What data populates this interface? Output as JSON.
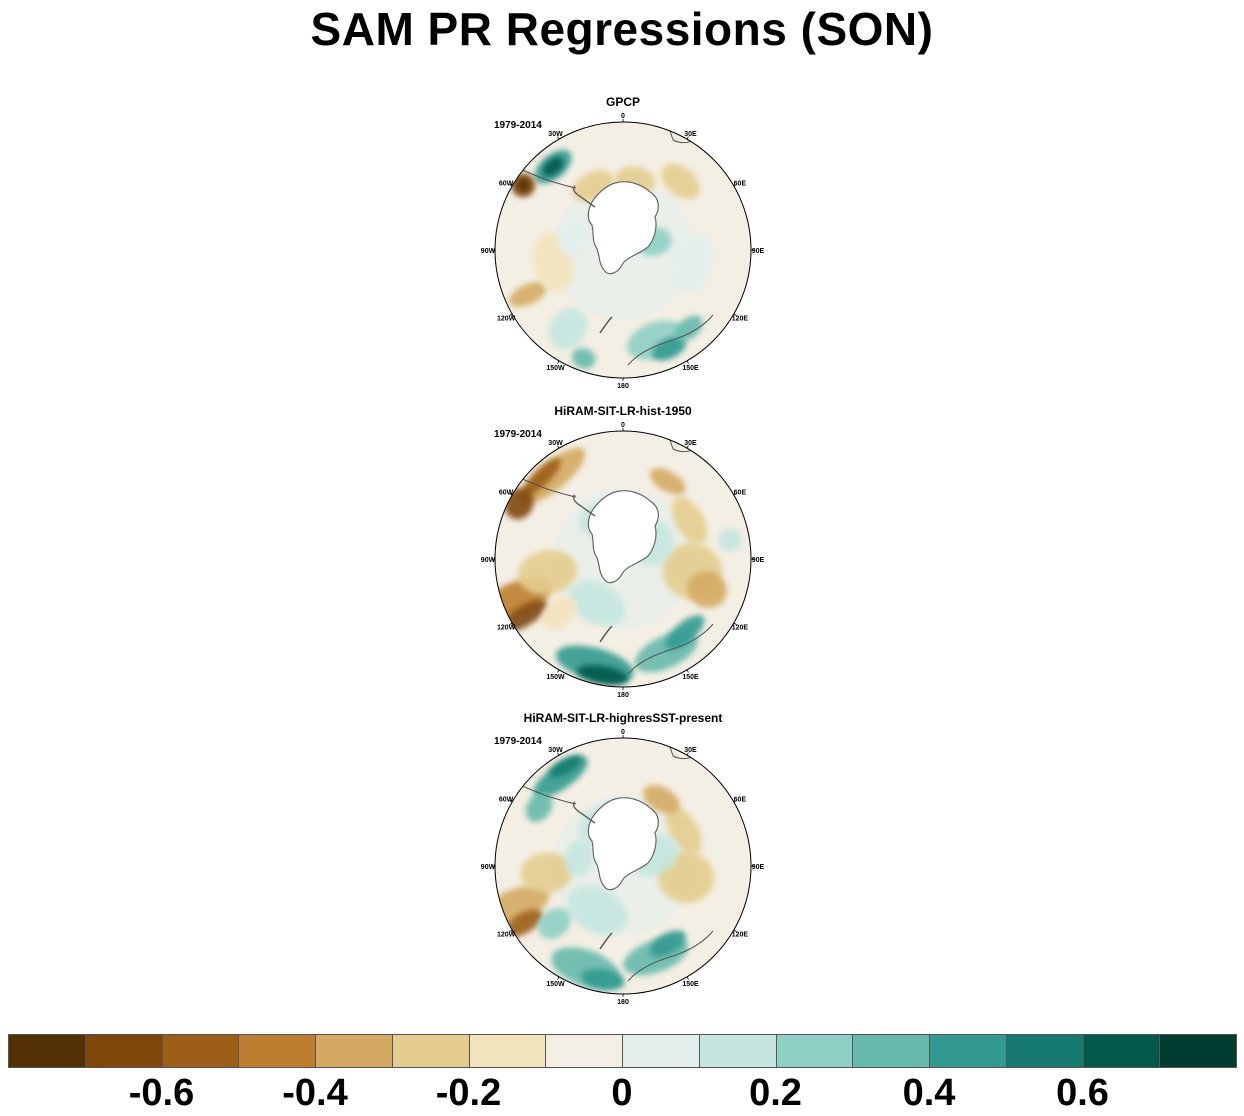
{
  "title": "SAM PR Regressions (SON)",
  "panels": [
    {
      "title": "GPCP",
      "period": "1979-2014"
    },
    {
      "title": "HiRAM-SIT-LR-hist-1950",
      "period": "1979-2014"
    },
    {
      "title": "HiRAM-SIT-LR-highresSST-present",
      "period": "1979-2014"
    }
  ],
  "longitude_labels": [
    "0",
    "30E",
    "60E",
    "90E",
    "120E",
    "150E",
    "180",
    "150W",
    "120W",
    "90W",
    "60W",
    "30W"
  ],
  "colorbar": {
    "colors": [
      "#543005",
      "#7f4709",
      "#9c5d16",
      "#bd7f2f",
      "#d4aa62",
      "#e4cd8e",
      "#f3e3bd",
      "#f4efe4",
      "#e2efed",
      "#c4e6df",
      "#8fd0c4",
      "#66b9ac",
      "#339a8f",
      "#167a70",
      "#01594c",
      "#003c30"
    ],
    "tick_labels": [
      "-0.6",
      "-0.4",
      "-0.2",
      "0",
      "0.2",
      "0.4",
      "0.6"
    ],
    "tick_values": [
      -0.6,
      -0.4,
      -0.2,
      0,
      0.2,
      0.4,
      0.6
    ],
    "range": [
      -0.8,
      0.8
    ]
  }
}
